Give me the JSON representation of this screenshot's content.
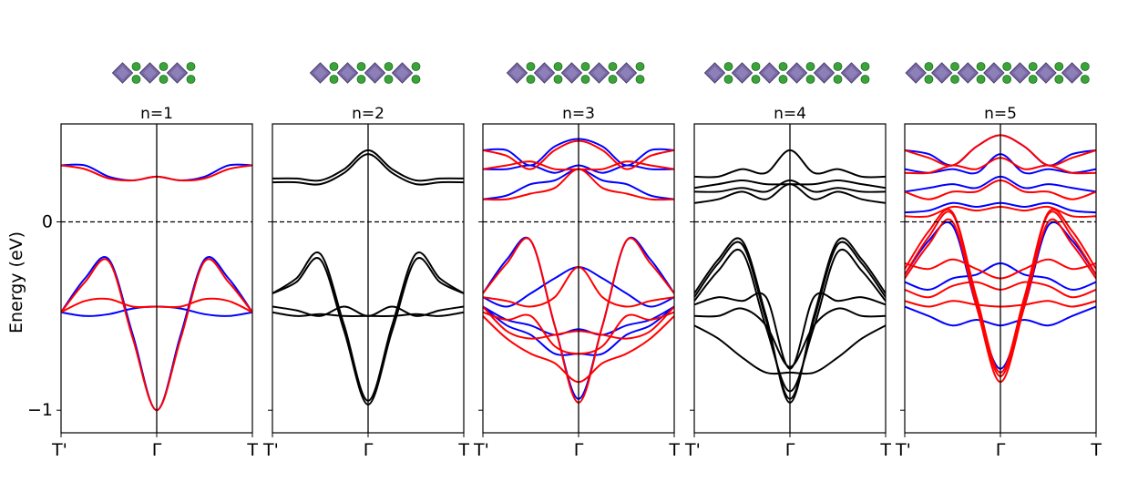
{
  "figure": {
    "ylabel": "Energy (eV)",
    "colors": {
      "spin_up": "#0000ff",
      "spin_down": "#ff0000",
      "bands": "#000000",
      "zero_line": "#000000"
    },
    "structure_icon": "perovskite-octahedra-layers"
  },
  "chart_data": [
    {
      "type": "line",
      "title": "n=1",
      "x_ticks": [
        "T'",
        "Γ",
        "T"
      ],
      "x": [
        -1,
        1
      ],
      "y_ticks": [
        "0",
        "−1"
      ],
      "y_tick_values": [
        0,
        -1
      ],
      "ylim": [
        -1.12,
        0.52
      ],
      "reference_line": 0,
      "series": [
        {
          "color": "#0000ff",
          "bands": [
            [
              0.3,
              0.3,
              0.24,
              0.22,
              0.24,
              0.22,
              0.24,
              0.3,
              0.3
            ],
            [
              -0.48,
              -0.3,
              -0.2,
              -0.6,
              -1.0,
              -0.6,
              -0.2,
              -0.3,
              -0.48
            ],
            [
              -0.48,
              -0.5,
              -0.49,
              -0.46,
              -0.45,
              -0.46,
              -0.49,
              -0.5,
              -0.48
            ]
          ]
        },
        {
          "color": "#ff0000",
          "bands": [
            [
              0.3,
              0.28,
              0.23,
              0.22,
              0.24,
              0.22,
              0.23,
              0.28,
              0.3
            ],
            [
              -0.48,
              -0.32,
              -0.21,
              -0.62,
              -1.0,
              -0.62,
              -0.21,
              -0.32,
              -0.48
            ],
            [
              -0.48,
              -0.42,
              -0.41,
              -0.45,
              -0.45,
              -0.45,
              -0.41,
              -0.42,
              -0.48
            ]
          ]
        }
      ]
    },
    {
      "type": "line",
      "title": "n=2",
      "x_ticks": [
        "T'",
        "Γ",
        "T"
      ],
      "x": [
        -1,
        1
      ],
      "y_ticks": [],
      "y_tick_values": [
        0,
        -1
      ],
      "ylim": [
        -1.12,
        0.52
      ],
      "reference_line": 0,
      "series": [
        {
          "color": "#000000",
          "bands": [
            [
              0.23,
              0.23,
              0.22,
              0.28,
              0.38,
              0.28,
              0.22,
              0.23,
              0.23
            ],
            [
              0.21,
              0.21,
              0.2,
              0.26,
              0.36,
              0.26,
              0.2,
              0.21,
              0.21
            ],
            [
              -0.38,
              -0.3,
              -0.17,
              -0.55,
              -0.95,
              -0.55,
              -0.17,
              -0.3,
              -0.38
            ],
            [
              -0.38,
              -0.32,
              -0.2,
              -0.58,
              -0.97,
              -0.58,
              -0.2,
              -0.32,
              -0.38
            ],
            [
              -0.45,
              -0.47,
              -0.5,
              -0.45,
              -0.5,
              -0.45,
              -0.5,
              -0.47,
              -0.45
            ],
            [
              -0.48,
              -0.5,
              -0.49,
              -0.5,
              -0.5,
              -0.5,
              -0.49,
              -0.5,
              -0.48
            ]
          ]
        }
      ]
    },
    {
      "type": "line",
      "title": "n=3",
      "x_ticks": [
        "T'",
        "Γ",
        "T"
      ],
      "x": [
        -1,
        1
      ],
      "y_ticks": [],
      "y_tick_values": [
        0,
        -1
      ],
      "ylim": [
        -1.12,
        0.52
      ],
      "reference_line": 0,
      "series": [
        {
          "color": "#0000ff",
          "bands": [
            [
              0.38,
              0.38,
              0.3,
              0.4,
              0.44,
              0.4,
              0.3,
              0.38,
              0.38
            ],
            [
              0.28,
              0.28,
              0.3,
              0.26,
              0.3,
              0.26,
              0.3,
              0.28,
              0.28
            ],
            [
              0.12,
              0.14,
              0.2,
              0.22,
              0.28,
              0.22,
              0.2,
              0.14,
              0.12
            ],
            [
              -0.38,
              -0.2,
              -0.1,
              -0.55,
              -0.94,
              -0.55,
              -0.1,
              -0.2,
              -0.38
            ],
            [
              -0.4,
              -0.45,
              -0.38,
              -0.3,
              -0.24,
              -0.3,
              -0.38,
              -0.45,
              -0.4
            ],
            [
              -0.45,
              -0.52,
              -0.55,
              -0.6,
              -0.57,
              -0.6,
              -0.55,
              -0.52,
              -0.45
            ],
            [
              -0.45,
              -0.55,
              -0.6,
              -0.7,
              -0.7,
              -0.7,
              -0.6,
              -0.55,
              -0.45
            ]
          ]
        },
        {
          "color": "#ff0000",
          "bands": [
            [
              0.38,
              0.35,
              0.28,
              0.38,
              0.43,
              0.38,
              0.28,
              0.35,
              0.38
            ],
            [
              0.28,
              0.3,
              0.32,
              0.28,
              0.28,
              0.28,
              0.32,
              0.3,
              0.28
            ],
            [
              0.12,
              0.12,
              0.15,
              0.18,
              0.28,
              0.18,
              0.15,
              0.12,
              0.12
            ],
            [
              -0.38,
              -0.22,
              -0.1,
              -0.55,
              -0.96,
              -0.55,
              -0.1,
              -0.22,
              -0.38
            ],
            [
              -0.4,
              -0.42,
              -0.45,
              -0.4,
              -0.24,
              -0.4,
              -0.45,
              -0.42,
              -0.4
            ],
            [
              -0.45,
              -0.58,
              -0.62,
              -0.6,
              -0.58,
              -0.6,
              -0.62,
              -0.58,
              -0.45
            ],
            [
              -0.48,
              -0.52,
              -0.5,
              -0.66,
              -0.7,
              -0.66,
              -0.5,
              -0.52,
              -0.48
            ],
            [
              -0.5,
              -0.62,
              -0.7,
              -0.75,
              -0.85,
              -0.75,
              -0.7,
              -0.62,
              -0.5
            ]
          ]
        }
      ]
    },
    {
      "type": "line",
      "title": "n=4",
      "x_ticks": [
        "T'",
        "Γ",
        "T"
      ],
      "x": [
        -1,
        1
      ],
      "y_ticks": [],
      "y_tick_values": [
        0,
        -1
      ],
      "ylim": [
        -1.12,
        0.52
      ],
      "reference_line": 0,
      "series": [
        {
          "color": "#000000",
          "bands": [
            [
              0.24,
              0.24,
              0.28,
              0.26,
              0.38,
              0.26,
              0.28,
              0.24,
              0.24
            ],
            [
              0.18,
              0.2,
              0.22,
              0.2,
              0.2,
              0.2,
              0.22,
              0.2,
              0.18
            ],
            [
              0.16,
              0.16,
              0.18,
              0.16,
              0.22,
              0.16,
              0.18,
              0.16,
              0.16
            ],
            [
              0.1,
              0.12,
              0.16,
              0.12,
              0.2,
              0.12,
              0.16,
              0.12,
              0.1
            ],
            [
              -0.38,
              -0.2,
              -0.1,
              -0.5,
              -0.96,
              -0.5,
              -0.1,
              -0.2,
              -0.38
            ],
            [
              -0.4,
              -0.22,
              -0.12,
              -0.52,
              -0.94,
              -0.52,
              -0.12,
              -0.22,
              -0.4
            ],
            [
              -0.42,
              -0.26,
              -0.16,
              -0.56,
              -0.9,
              -0.56,
              -0.16,
              -0.26,
              -0.42
            ],
            [
              -0.44,
              -0.4,
              -0.42,
              -0.4,
              -0.78,
              -0.4,
              -0.42,
              -0.4,
              -0.44
            ],
            [
              -0.5,
              -0.5,
              -0.46,
              -0.55,
              -0.77,
              -0.55,
              -0.46,
              -0.5,
              -0.5
            ],
            [
              -0.55,
              -0.62,
              -0.72,
              -0.8,
              -0.8,
              -0.8,
              -0.72,
              -0.62,
              -0.55
            ]
          ]
        }
      ]
    },
    {
      "type": "line",
      "title": "n=5",
      "x_ticks": [
        "T'",
        "Γ",
        "T"
      ],
      "x": [
        -1,
        1
      ],
      "y_ticks": [],
      "y_tick_values": [
        0,
        -1
      ],
      "ylim": [
        -1.12,
        0.52
      ],
      "reference_line": 0,
      "series": [
        {
          "color": "#0000ff",
          "bands": [
            [
              0.38,
              0.36,
              0.3,
              0.4,
              0.46,
              0.4,
              0.3,
              0.36,
              0.38
            ],
            [
              0.28,
              0.26,
              0.28,
              0.26,
              0.36,
              0.26,
              0.28,
              0.26,
              0.28
            ],
            [
              0.16,
              0.18,
              0.2,
              0.18,
              0.24,
              0.18,
              0.2,
              0.18,
              0.16
            ],
            [
              0.05,
              0.06,
              0.1,
              0.08,
              0.1,
              0.08,
              0.1,
              0.06,
              0.05
            ],
            [
              -0.28,
              -0.1,
              -0.02,
              -0.45,
              -0.78,
              -0.45,
              -0.02,
              -0.1,
              -0.28
            ],
            [
              -0.32,
              -0.36,
              -0.3,
              -0.28,
              -0.22,
              -0.28,
              -0.3,
              -0.36,
              -0.32
            ],
            [
              -0.45,
              -0.5,
              -0.55,
              -0.52,
              -0.55,
              -0.52,
              -0.55,
              -0.5,
              -0.45
            ]
          ]
        },
        {
          "color": "#ff0000",
          "bands": [
            [
              0.38,
              0.34,
              0.3,
              0.4,
              0.46,
              0.4,
              0.3,
              0.34,
              0.38
            ],
            [
              0.26,
              0.26,
              0.3,
              0.28,
              0.34,
              0.28,
              0.3,
              0.26,
              0.26
            ],
            [
              0.16,
              0.12,
              0.16,
              0.16,
              0.22,
              0.16,
              0.16,
              0.12,
              0.16
            ],
            [
              0.03,
              0.03,
              0.08,
              0.06,
              0.08,
              0.06,
              0.08,
              0.03,
              0.03
            ],
            [
              -0.25,
              -0.05,
              0.05,
              -0.4,
              -0.8,
              -0.4,
              0.05,
              -0.05,
              -0.25
            ],
            [
              -0.28,
              -0.08,
              0.04,
              -0.42,
              -0.82,
              -0.42,
              0.04,
              -0.08,
              -0.28
            ],
            [
              -0.3,
              -0.12,
              0.0,
              -0.45,
              -0.85,
              -0.45,
              0.0,
              -0.12,
              -0.3
            ],
            [
              -0.22,
              -0.25,
              -0.2,
              -0.25,
              -0.3,
              -0.25,
              -0.2,
              -0.25,
              -0.22
            ],
            [
              -0.36,
              -0.4,
              -0.34,
              -0.32,
              -0.36,
              -0.32,
              -0.34,
              -0.4,
              -0.36
            ],
            [
              -0.42,
              -0.45,
              -0.42,
              -0.44,
              -0.45,
              -0.44,
              -0.42,
              -0.45,
              -0.42
            ]
          ]
        }
      ]
    }
  ]
}
